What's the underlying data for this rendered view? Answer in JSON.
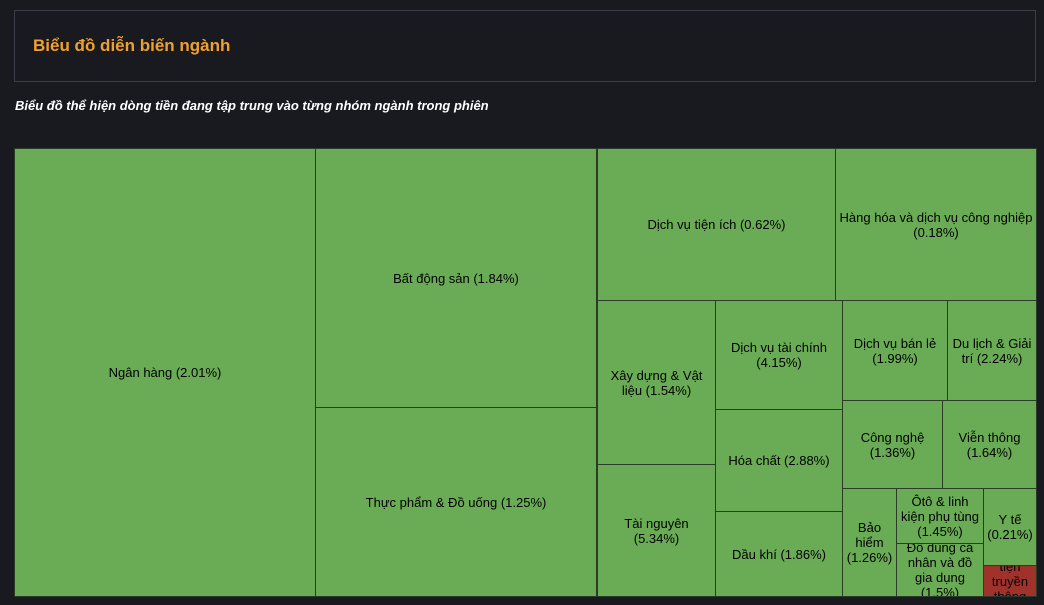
{
  "header": {
    "title": "Biểu đồ diễn biến ngành"
  },
  "subtitle": "Biểu đồ thể hiện dòng tiền đang tập trung vào từng nhóm ngành trong phiên",
  "colors": {
    "up": "#6aac55",
    "down": "#a0322c",
    "border": "#2c3a2a"
  },
  "chart_data": {
    "type": "treemap",
    "title": "",
    "items": [
      {
        "name": "Ngân hàng",
        "change_label": "(2.01%)",
        "change": 2.01,
        "direction": "up"
      },
      {
        "name": "Bất động sản",
        "change_label": "(1.84%)",
        "change": 1.84,
        "direction": "up"
      },
      {
        "name": "Thực phẩm & Đồ uống",
        "change_label": "(1.25%)",
        "change": 1.25,
        "direction": "up"
      },
      {
        "name": "Dịch vụ tiện ích",
        "change_label": "(0.62%)",
        "change": 0.62,
        "direction": "up"
      },
      {
        "name": "Hàng hóa và dịch vụ công nghiệp",
        "change_label": "(0.18%)",
        "change": 0.18,
        "direction": "up"
      },
      {
        "name": "Xây dựng & Vật liệu",
        "change_label": "(1.54%)",
        "change": 1.54,
        "direction": "up"
      },
      {
        "name": "Tài nguyên",
        "change_label": "(5.34%)",
        "change": 5.34,
        "direction": "up"
      },
      {
        "name": "Dịch vụ tài chính",
        "change_label": "(4.15%)",
        "change": 4.15,
        "direction": "up"
      },
      {
        "name": "Hóa chất",
        "change_label": "(2.88%)",
        "change": 2.88,
        "direction": "up"
      },
      {
        "name": "Dầu khí",
        "change_label": "(1.86%)",
        "change": 1.86,
        "direction": "up"
      },
      {
        "name": "Dịch vụ bán lẻ",
        "change_label": "(1.99%)",
        "change": 1.99,
        "direction": "up"
      },
      {
        "name": "Du lịch & Giải trí",
        "change_label": "(2.24%)",
        "change": 2.24,
        "direction": "up"
      },
      {
        "name": "Công nghệ",
        "change_label": "(1.36%)",
        "change": 1.36,
        "direction": "up"
      },
      {
        "name": "Viễn thông",
        "change_label": "(1.64%)",
        "change": 1.64,
        "direction": "up"
      },
      {
        "name": "Bảo hiểm",
        "change_label": "(1.26%)",
        "change": 1.26,
        "direction": "up"
      },
      {
        "name": "Ôtô & linh kiện phụ tùng",
        "change_label": "(1.45%)",
        "change": 1.45,
        "direction": "up"
      },
      {
        "name": "Y tế",
        "change_label": "(0.21%)",
        "change": 0.21,
        "direction": "up"
      },
      {
        "name": "Đồ dùng cá nhân và đồ gia dụng",
        "change_label": "(1.5%)",
        "change": 1.5,
        "direction": "up"
      },
      {
        "name": "tiện truyền thông",
        "change_label": "",
        "change": null,
        "direction": "down"
      }
    ]
  }
}
